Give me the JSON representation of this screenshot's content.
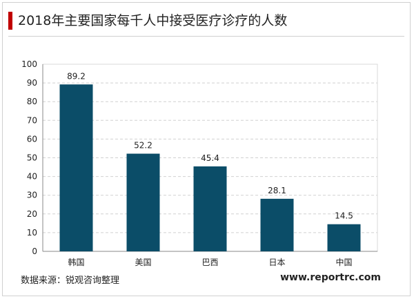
{
  "title": "2018年主要国家每千人中接受医疗诊疗的人数",
  "source_text": "数据来源：锐观咨询整理",
  "website": "www.reportrc.com",
  "colors": {
    "bar": "#0b4d68",
    "accent": "#c00000"
  },
  "chart_data": {
    "type": "bar",
    "categories": [
      "韩国",
      "美国",
      "巴西",
      "日本",
      "中国"
    ],
    "values": [
      89.2,
      52.2,
      45.4,
      28.1,
      14.5
    ],
    "value_labels": [
      "89.2",
      "52.2",
      "45.4",
      "28.1",
      "14.5"
    ],
    "ylim": [
      0,
      100
    ],
    "yticks": [
      0,
      10,
      20,
      30,
      40,
      50,
      60,
      70,
      80,
      90,
      100
    ],
    "grid": "horizontal-dashed",
    "xlabel": "",
    "ylabel": ""
  }
}
